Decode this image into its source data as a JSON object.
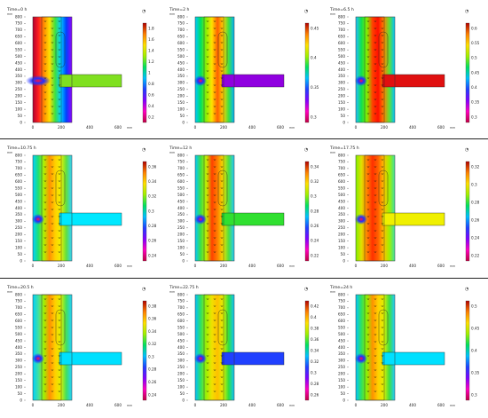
{
  "units": "mm",
  "axis": {
    "y_ticks": [
      "800",
      "750",
      "700",
      "650",
      "600",
      "550",
      "500",
      "450",
      "400",
      "350",
      "300",
      "250",
      "200",
      "150",
      "100",
      "50",
      "0"
    ],
    "x_ticks": [
      "0",
      "200",
      "400",
      "600"
    ]
  },
  "panels": [
    {
      "title": "Time=0 h",
      "colors": [
        "#b00030",
        "#ff2020",
        "#ff8c00",
        "#ffe000",
        "#40e040",
        "#00d0ff",
        "#0040ff",
        "#9000ff"
      ],
      "branch": "#80e020",
      "ticks": [
        "1.8",
        "1.6",
        "1.4",
        "1.2",
        "1",
        "0.8",
        "0.6",
        "0.4",
        "0.2"
      ]
    },
    {
      "title": "Time=2 h",
      "colors": [
        "#00c8ff",
        "#00e060",
        "#90f000",
        "#ffe000",
        "#ff6000",
        "#ffd000",
        "#40e040",
        "#00b0ff"
      ],
      "branch": "#9000e0",
      "ticks": [
        "0.45",
        "0.4",
        "0.35",
        "0.3"
      ]
    },
    {
      "title": "Time=6.5 h",
      "colors": [
        "#20c0ff",
        "#10e050",
        "#80f000",
        "#ff4000",
        "#ff1000",
        "#ff8000",
        "#60e030",
        "#00c0ff"
      ],
      "branch": "#e01010",
      "ticks": [
        "0.6",
        "0.55",
        "0.5",
        "0.45",
        "0.4",
        "0.35",
        "0.3"
      ]
    },
    {
      "title": "Time=10.75 h",
      "colors": [
        "#00d0ff",
        "#20e070",
        "#b0f000",
        "#ff9000",
        "#ffd000",
        "#f0f000",
        "#60e040",
        "#30d0ff"
      ],
      "branch": "#00e8ff",
      "ticks": [
        "0.36",
        "0.34",
        "0.32",
        "0.3",
        "0.28",
        "0.26",
        "0.24"
      ]
    },
    {
      "title": "Time=12 h",
      "colors": [
        "#00c8ff",
        "#40e040",
        "#c0f000",
        "#ff4000",
        "#ff8000",
        "#f0e000",
        "#50e040",
        "#20c8ff"
      ],
      "branch": "#30e030",
      "ticks": [
        "0.34",
        "0.32",
        "0.3",
        "0.28",
        "0.26",
        "0.24",
        "0.22"
      ]
    },
    {
      "title": "Time=17.75 h",
      "colors": [
        "#80f000",
        "#e0e000",
        "#ff8000",
        "#ff3000",
        "#ff6000",
        "#ffc000",
        "#a0f000",
        "#40e0a0"
      ],
      "branch": "#f0f000",
      "ticks": [
        "0.32",
        "0.3",
        "0.28",
        "0.26",
        "0.24",
        "0.22"
      ]
    },
    {
      "title": "Time=20.5 h",
      "colors": [
        "#00d0ff",
        "#40e0a0",
        "#a0f000",
        "#ff9000",
        "#ffd000",
        "#e0f000",
        "#40e060",
        "#20d0ff"
      ],
      "branch": "#00e0ff",
      "ticks": [
        "0.38",
        "0.36",
        "0.34",
        "0.32",
        "0.3",
        "0.28",
        "0.26",
        "0.24"
      ]
    },
    {
      "title": "Time=22.75 h",
      "colors": [
        "#00c0ff",
        "#30e060",
        "#a0f000",
        "#f0e000",
        "#ffc000",
        "#e0f000",
        "#30e040",
        "#10c0ff"
      ],
      "branch": "#2040ff",
      "ticks": [
        "0.42",
        "0.4",
        "0.38",
        "0.36",
        "0.34",
        "0.32",
        "0.3",
        "0.28",
        "0.26"
      ]
    },
    {
      "title": "Time=24 h",
      "colors": [
        "#00c8ff",
        "#30e060",
        "#90f000",
        "#ff9000",
        "#ffd000",
        "#e0f000",
        "#40e040",
        "#20c8ff"
      ],
      "branch": "#00e0ff",
      "ticks": [
        "0.5",
        "0.45",
        "0.4",
        "0.35",
        "0.3"
      ]
    }
  ]
}
